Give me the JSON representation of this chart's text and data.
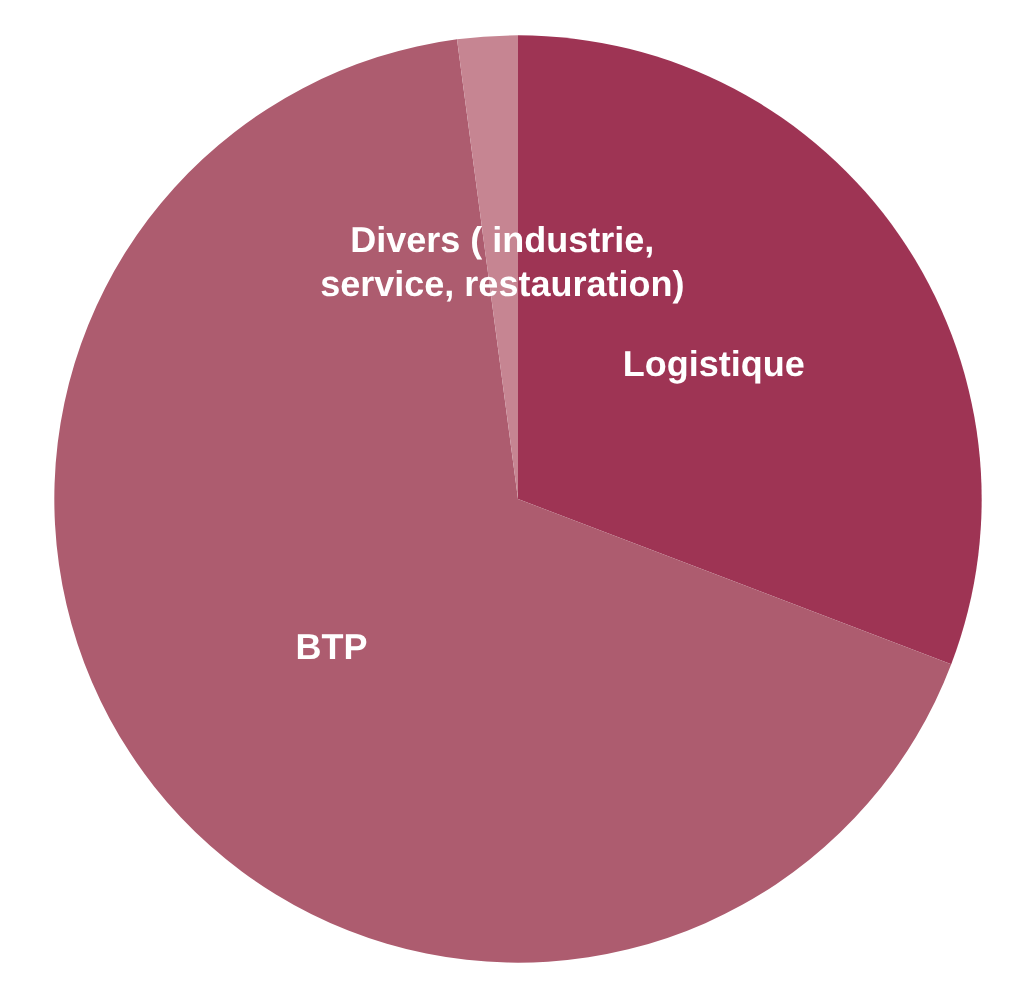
{
  "chart_data": {
    "type": "pie",
    "categories": [
      "Logistique",
      "BTP",
      "Divers ( industrie,\nservice, restauration)"
    ],
    "values": [
      30.8,
      67.1,
      2.1
    ],
    "colors": [
      "#9e3454",
      "#ad5c6f",
      "#c68592"
    ]
  }
}
